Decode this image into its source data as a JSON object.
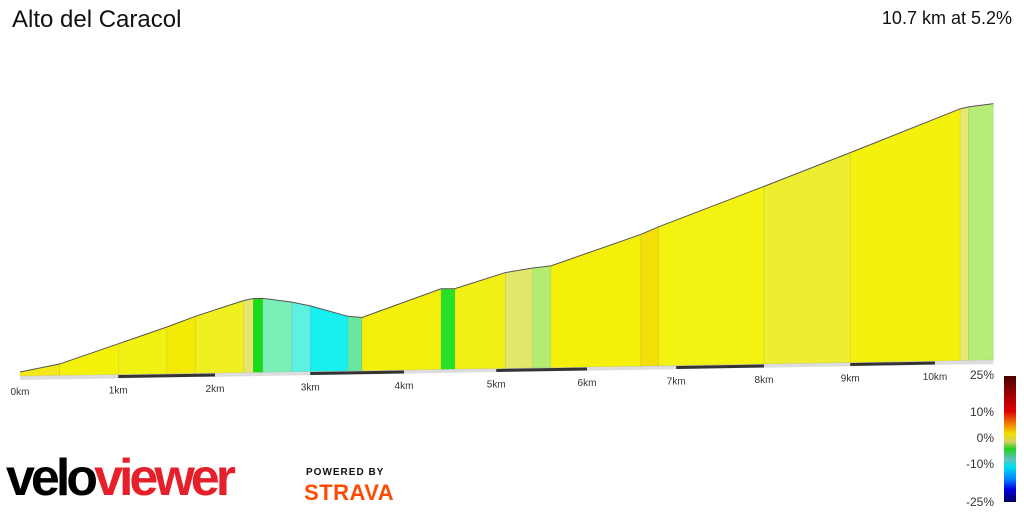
{
  "header": {
    "title": "Alto del Caracol",
    "summary": "10.7 km at 5.2%"
  },
  "chart_data": {
    "type": "area",
    "title": "Alto del Caracol",
    "xlabel": "",
    "ylabel": "",
    "x_unit": "km",
    "xlim": [
      0,
      10.7
    ],
    "x_ticks": [
      "0km",
      "1km",
      "2km",
      "3km",
      "4km",
      "5km",
      "6km",
      "7km",
      "8km",
      "9km",
      "10km"
    ],
    "segments": [
      {
        "from": 0,
        "to": 0.4,
        "gradient": 4,
        "color": "#f2e81a"
      },
      {
        "from": 0.4,
        "to": 1.0,
        "gradient": 7,
        "color": "#f4f20a"
      },
      {
        "from": 1.0,
        "to": 1.5,
        "gradient": 7,
        "color": "#f2f212"
      },
      {
        "from": 1.5,
        "to": 1.8,
        "gradient": 7.5,
        "color": "#f3ea05"
      },
      {
        "from": 1.8,
        "to": 2.3,
        "gradient": 6.5,
        "color": "#f0f020"
      },
      {
        "from": 2.3,
        "to": 2.4,
        "gradient": 4,
        "color": "#e6e66a"
      },
      {
        "from": 2.4,
        "to": 2.5,
        "gradient": 0,
        "color": "#18dc18"
      },
      {
        "from": 2.5,
        "to": 2.8,
        "gradient": -3,
        "color": "#7ceeb8"
      },
      {
        "from": 2.8,
        "to": 3.0,
        "gradient": -4.5,
        "color": "#5ef0e0"
      },
      {
        "from": 3.0,
        "to": 3.4,
        "gradient": -6,
        "color": "#18f0f0"
      },
      {
        "from": 3.4,
        "to": 3.55,
        "gradient": -2,
        "color": "#6ae8a0"
      },
      {
        "from": 3.55,
        "to": 4.4,
        "gradient": 7,
        "color": "#f4f00c"
      },
      {
        "from": 4.4,
        "to": 4.55,
        "gradient": 0,
        "color": "#28e028"
      },
      {
        "from": 4.55,
        "to": 5.1,
        "gradient": 6,
        "color": "#f2f016"
      },
      {
        "from": 5.1,
        "to": 5.4,
        "gradient": 3,
        "color": "#e2e86c"
      },
      {
        "from": 5.4,
        "to": 5.6,
        "gradient": 2,
        "color": "#b4ec70"
      },
      {
        "from": 5.6,
        "to": 6.6,
        "gradient": 6.5,
        "color": "#f4f00a"
      },
      {
        "from": 6.6,
        "to": 6.8,
        "gradient": 8,
        "color": "#f4de08"
      },
      {
        "from": 6.8,
        "to": 8.0,
        "gradient": 7,
        "color": "#f4f210"
      },
      {
        "from": 8.0,
        "to": 9.0,
        "gradient": 7,
        "color": "#eeee30"
      },
      {
        "from": 9.0,
        "to": 10.3,
        "gradient": 7,
        "color": "#f4f20c"
      },
      {
        "from": 10.3,
        "to": 10.4,
        "gradient": 4,
        "color": "#e6e870"
      },
      {
        "from": 10.4,
        "to": 10.7,
        "gradient": 2,
        "color": "#b8ec78"
      }
    ],
    "legend": {
      "labels": [
        "25%",
        "10%",
        "0%",
        "-10%",
        "-25%"
      ],
      "placement": "bottom-right"
    }
  },
  "branding": {
    "velo": "velo",
    "viewer": "viewer",
    "powered": "POWERED BY",
    "strava": "STRAVA"
  }
}
